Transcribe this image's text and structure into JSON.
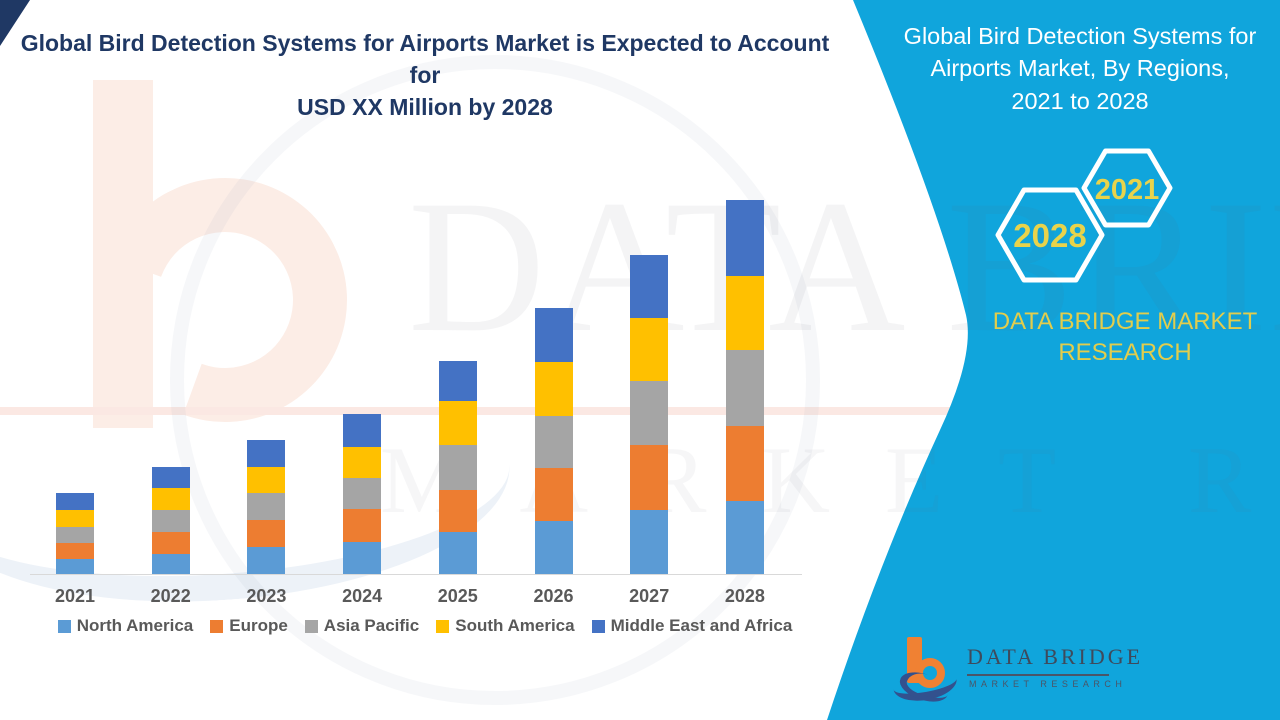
{
  "title": {
    "line1": "Global Bird Detection Systems for Airports Market is Expected to Account for",
    "line2": "USD XX Million by 2028"
  },
  "side_panel": {
    "heading_lines": [
      "Global Bird Detection Systems for",
      "Airports Market, By Regions,",
      "2021 to 2028"
    ],
    "badge_back_year": "2028",
    "badge_front_year": "2021",
    "brand_line1": "DATA BRIDGE MARKET",
    "brand_line2": "RESEARCH",
    "background_color": "#10A5DC",
    "accent_text_color": "#E2CD4C"
  },
  "logo": {
    "name": "DATA BRIDGE",
    "tagline": "MARKET RESEARCH",
    "orange": "#F08133",
    "navy": "#33518E"
  },
  "watermark": {
    "line1": "DATA BRIDGE",
    "line2": "MARKET RESEARCH"
  },
  "chart_data": {
    "type": "bar",
    "stacked": true,
    "title": "Global Bird Detection Systems for Airports Market is Expected to Account for USD XX Million by 2028",
    "xlabel": "",
    "ylabel": "",
    "y_axis_visible": false,
    "gridlines": false,
    "legend_position": "bottom",
    "value_note": "Relative units estimated from bar heights; actual values shown only as USD XX Million",
    "categories": [
      "2021",
      "2022",
      "2023",
      "2024",
      "2025",
      "2026",
      "2027",
      "2028"
    ],
    "series": [
      {
        "name": "North America",
        "color": "#5B9BD5",
        "values": [
          15,
          20,
          27,
          32,
          42,
          53,
          64,
          73
        ]
      },
      {
        "name": "Europe",
        "color": "#ED7D31",
        "values": [
          16,
          22,
          27,
          33,
          42,
          53,
          65,
          75
        ]
      },
      {
        "name": "Asia Pacific",
        "color": "#A5A5A5",
        "values": [
          16,
          22,
          27,
          31,
          45,
          52,
          64,
          76
        ]
      },
      {
        "name": "South America",
        "color": "#FFC000",
        "values": [
          17,
          22,
          26,
          31,
          44,
          54,
          63,
          74
        ]
      },
      {
        "name": "Middle East and Africa",
        "color": "#4472C4",
        "values": [
          17,
          21,
          27,
          33,
          40,
          54,
          63,
          76
        ]
      }
    ],
    "totals": [
      81,
      107,
      134,
      160,
      213,
      266,
      319,
      374
    ],
    "axis_text_color": "#595959"
  }
}
